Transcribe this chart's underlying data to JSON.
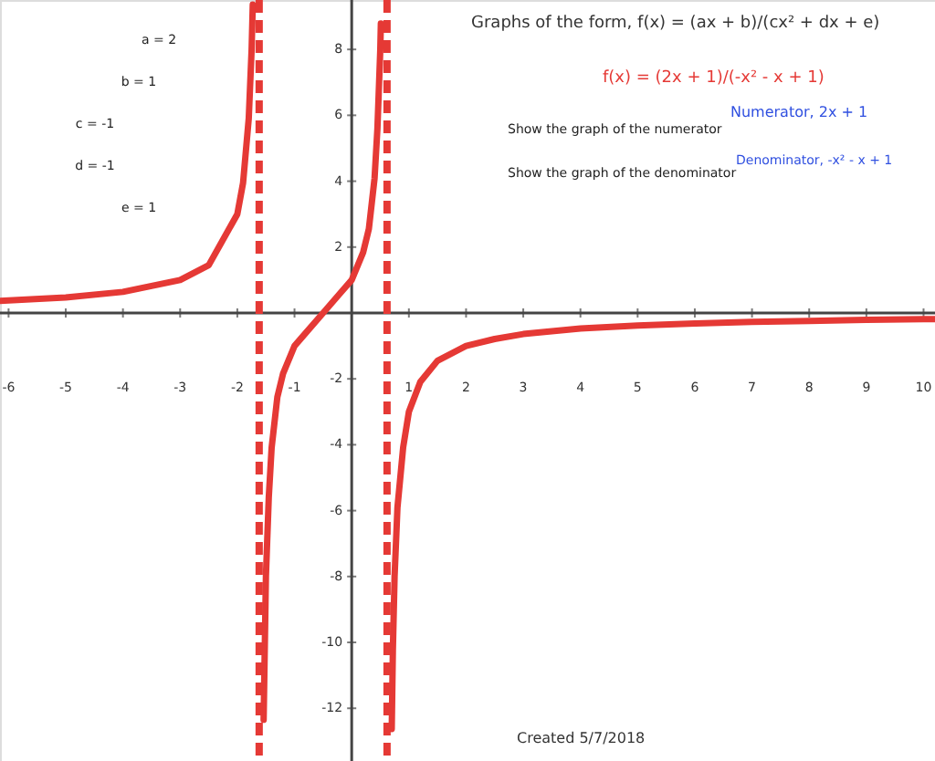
{
  "chart_data": {
    "type": "line",
    "title": "Graphs of the form,  f(x) = (ax + b)/(cx² + dx + e)",
    "xlim": [
      -6.15,
      10.2
    ],
    "ylim": [
      -13.6,
      9.5
    ],
    "xticks": [
      -6,
      -5,
      -4,
      -3,
      -2,
      -1,
      1,
      2,
      3,
      4,
      5,
      6,
      7,
      8,
      9,
      10
    ],
    "yticks": [
      -12,
      -10,
      -8,
      -6,
      -4,
      -2,
      2,
      4,
      6,
      8
    ],
    "series": [
      {
        "color": "#e53935",
        "x": [
          -6.15,
          -6,
          -5,
          -4,
          -3,
          -2.5,
          -2,
          -1.9,
          -1.8,
          -1.75,
          -1.73
        ],
        "values": [
          0.37,
          0.38,
          0.47,
          0.64,
          1,
          1.45,
          3,
          3.94,
          5.91,
          8,
          9.36
        ]
      },
      {
        "color": "#e53935",
        "x": [
          -1.54,
          -1.5,
          -1.45,
          -1.4,
          -1.3,
          -1.2,
          -1,
          -0.8,
          -0.5,
          -0.2,
          0,
          0.2,
          0.3,
          0.4,
          0.45,
          0.5,
          0.51
        ],
        "values": [
          -12.35,
          -8,
          -5.6,
          -4.09,
          -2.55,
          -1.84,
          -1,
          -0.6,
          0,
          0.6,
          1,
          1.84,
          2.55,
          4.09,
          5.6,
          8,
          8.79
        ]
      },
      {
        "color": "#e53935",
        "x": [
          0.7,
          0.72,
          0.75,
          0.8,
          0.9,
          1,
          1.2,
          1.5,
          2,
          2.5,
          3,
          4,
          5,
          6,
          7,
          8,
          9,
          10,
          10.2
        ],
        "values": [
          -12.63,
          -10.23,
          -8,
          -5.91,
          -4.08,
          -3,
          -2.09,
          -1.45,
          -1,
          -0.79,
          -0.64,
          -0.47,
          -0.38,
          -0.32,
          -0.27,
          -0.24,
          -0.21,
          -0.19,
          -0.19
        ]
      }
    ],
    "ref_lines": [
      {
        "axis": "x",
        "value": -1.618,
        "color": "#e53935",
        "line_style": "dashed"
      },
      {
        "axis": "x",
        "value": 0.618,
        "color": "#e53935",
        "line_style": "dashed"
      }
    ],
    "line_style": "solid",
    "marker": "none",
    "annotations": [
      "f(x) = (2x + 1)/(-x² - x + 1)",
      "Show the graph of the numerator",
      "Show the graph of the denominator",
      "Numerator, 2x + 1",
      "Denominator, -x² - x + 1",
      "a = 2",
      "b = 1",
      "c = -1",
      "d = -1",
      "e = 1",
      "Created 5/7/2018"
    ]
  }
}
